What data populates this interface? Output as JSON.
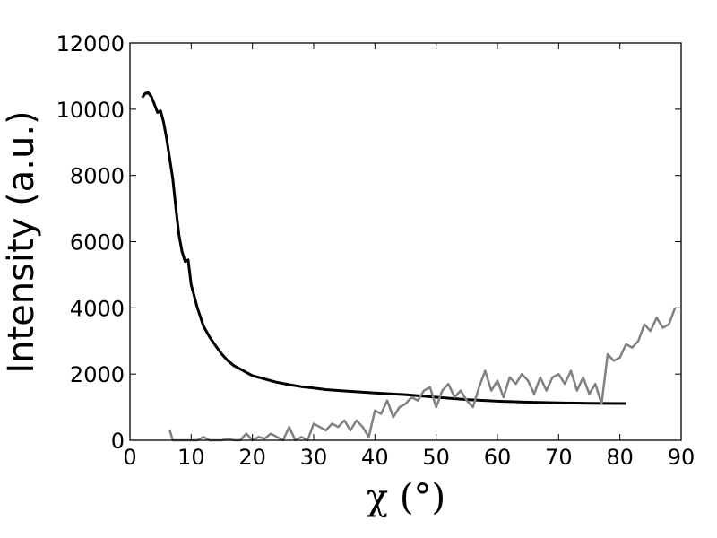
{
  "chart_data": {
    "type": "line",
    "xlabel": "χ (°)",
    "ylabel": "Intensity (a.u.)",
    "xlim": [
      0,
      90
    ],
    "ylim": [
      0,
      12000
    ],
    "xticks": [
      "0",
      "10",
      "20",
      "30",
      "40",
      "50",
      "60",
      "70",
      "80",
      "90"
    ],
    "yticks": [
      "0",
      "2000",
      "4000",
      "6000",
      "8000",
      "10000",
      "12000"
    ],
    "grid": false,
    "legend": "none",
    "series": [
      {
        "color": "#000000",
        "x": [
          2,
          2.5,
          3,
          3.5,
          4,
          4.5,
          5,
          5.5,
          6,
          6.5,
          7,
          7.5,
          8,
          8.5,
          9,
          9.5,
          10,
          11,
          12,
          13,
          14,
          15,
          16,
          17,
          18,
          19,
          20,
          22,
          24,
          26,
          28,
          30,
          32,
          35,
          40,
          45,
          50,
          55,
          60,
          65,
          70,
          75,
          81
        ],
        "y": [
          10350,
          10480,
          10500,
          10380,
          10150,
          9900,
          9950,
          9600,
          9100,
          8500,
          7900,
          7000,
          6200,
          5700,
          5400,
          5450,
          4700,
          4000,
          3450,
          3120,
          2850,
          2600,
          2400,
          2250,
          2150,
          2050,
          1950,
          1850,
          1750,
          1680,
          1620,
          1580,
          1530,
          1490,
          1430,
          1380,
          1300,
          1230,
          1180,
          1150,
          1130,
          1120,
          1110
        ]
      },
      {
        "color": "#808080",
        "x": [
          6.5,
          7,
          8,
          9,
          10,
          11,
          12,
          13,
          14,
          15,
          16,
          17,
          18,
          19,
          20,
          21,
          22,
          23,
          24,
          25,
          26,
          27,
          28,
          29,
          30,
          31,
          32,
          33,
          34,
          35,
          36,
          37,
          38,
          39,
          40,
          41,
          42,
          43,
          44,
          45,
          46,
          47,
          48,
          49,
          50,
          51,
          52,
          53,
          54,
          55,
          56,
          57,
          58,
          59,
          60,
          61,
          62,
          63,
          64,
          65,
          66,
          67,
          68,
          69,
          70,
          71,
          72,
          73,
          74,
          75,
          76,
          77,
          78,
          79,
          80,
          81,
          82,
          83,
          84,
          85,
          86,
          87,
          88,
          89
        ],
        "y": [
          300,
          0,
          0,
          0,
          0,
          0,
          100,
          0,
          0,
          0,
          50,
          0,
          0,
          200,
          0,
          100,
          50,
          200,
          100,
          0,
          400,
          0,
          100,
          0,
          500,
          400,
          300,
          500,
          400,
          600,
          300,
          600,
          400,
          100,
          900,
          800,
          1200,
          700,
          1000,
          1100,
          1300,
          1200,
          1500,
          1600,
          1000,
          1500,
          1700,
          1300,
          1500,
          1200,
          1000,
          1600,
          2100,
          1500,
          1800,
          1300,
          1900,
          1700,
          2000,
          1800,
          1400,
          1900,
          1500,
          1900,
          2000,
          1700,
          2100,
          1500,
          1900,
          1400,
          1700,
          1100,
          2600,
          2400,
          2500,
          2900,
          2800,
          3000,
          3500,
          3300,
          3700,
          3400,
          3500,
          4000
        ]
      }
    ]
  }
}
